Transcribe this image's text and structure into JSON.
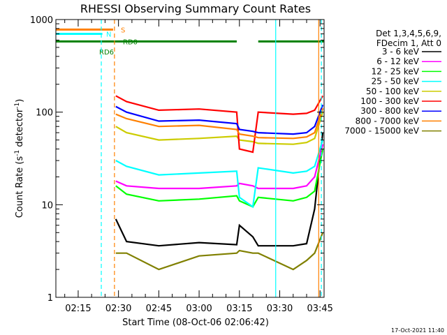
{
  "chart_data": {
    "type": "line",
    "title": "RHESSI Observing Summary Count Rates",
    "xlabel": "Start Time (08-Oct-06 02:06:42)",
    "ylabel_parts": [
      "Count Rate (s",
      "-1",
      " detector",
      "-1",
      ")"
    ],
    "yscale": "log",
    "ylim": [
      1,
      1000
    ],
    "xlim": [
      6.7,
      106.5
    ],
    "x_unit": "minutes since 02:00",
    "y_ticks": [
      {
        "v": 1,
        "label": "1"
      },
      {
        "v": 10,
        "label": "10"
      },
      {
        "v": 100,
        "label": "100"
      },
      {
        "v": 1000,
        "label": "1000"
      }
    ],
    "x_ticks": [
      {
        "v": 15,
        "label": "02:15"
      },
      {
        "v": 30,
        "label": "02:30"
      },
      {
        "v": 45,
        "label": "02:45"
      },
      {
        "v": 60,
        "label": "03:00"
      },
      {
        "v": 75,
        "label": "03:15"
      },
      {
        "v": 90,
        "label": "03:30"
      },
      {
        "v": 105,
        "label": "03:45"
      }
    ],
    "legend": {
      "placement": "right",
      "header": [
        "Det 1,3,4,5,6,9,",
        "FDecim 1, Att 0"
      ]
    },
    "series": [
      {
        "name": "3 - 6 keV",
        "color": "#000000",
        "values": [
          [
            29,
            7
          ],
          [
            33,
            4
          ],
          [
            45,
            3.6
          ],
          [
            60,
            3.9
          ],
          [
            74,
            3.7
          ],
          [
            75,
            6
          ],
          [
            80,
            4.5
          ],
          [
            82,
            3.6
          ],
          [
            95,
            3.6
          ],
          [
            100,
            3.8
          ],
          [
            103,
            9
          ],
          [
            106,
            60
          ]
        ]
      },
      {
        "name": "6 - 12 keV",
        "color": "#ff00ff",
        "values": [
          [
            29,
            18
          ],
          [
            33,
            16
          ],
          [
            45,
            15
          ],
          [
            60,
            15
          ],
          [
            74,
            16
          ],
          [
            75,
            17
          ],
          [
            80,
            16
          ],
          [
            82,
            15
          ],
          [
            95,
            15
          ],
          [
            100,
            16
          ],
          [
            103,
            20
          ],
          [
            106,
            45
          ]
        ]
      },
      {
        "name": "12 - 25 keV",
        "color": "#00ff00",
        "values": [
          [
            29,
            16
          ],
          [
            33,
            13
          ],
          [
            45,
            11
          ],
          [
            60,
            11.5
          ],
          [
            74,
            12.5
          ],
          [
            75,
            11
          ],
          [
            80,
            9.5
          ],
          [
            82,
            12
          ],
          [
            95,
            11
          ],
          [
            100,
            12
          ],
          [
            103,
            14
          ],
          [
            106,
            40
          ]
        ]
      },
      {
        "name": "25 - 50 keV",
        "color": "#00ffff",
        "values": [
          [
            29,
            30
          ],
          [
            33,
            26
          ],
          [
            45,
            21
          ],
          [
            60,
            22
          ],
          [
            74,
            23
          ],
          [
            75,
            12
          ],
          [
            80,
            9.5
          ],
          [
            82,
            25
          ],
          [
            95,
            22
          ],
          [
            100,
            23
          ],
          [
            103,
            26
          ],
          [
            106,
            50
          ]
        ]
      },
      {
        "name": "50 - 100 keV",
        "color": "#cccc00",
        "values": [
          [
            29,
            70
          ],
          [
            33,
            60
          ],
          [
            45,
            50
          ],
          [
            60,
            52
          ],
          [
            74,
            55
          ],
          [
            75,
            50
          ],
          [
            80,
            48
          ],
          [
            82,
            46
          ],
          [
            95,
            45
          ],
          [
            100,
            47
          ],
          [
            103,
            52
          ],
          [
            106,
            100
          ]
        ]
      },
      {
        "name": "100 - 300 keV",
        "color": "#ff0000",
        "values": [
          [
            29,
            150
          ],
          [
            33,
            130
          ],
          [
            45,
            105
          ],
          [
            60,
            108
          ],
          [
            74,
            100
          ],
          [
            75,
            40
          ],
          [
            80,
            37
          ],
          [
            82,
            100
          ],
          [
            95,
            95
          ],
          [
            100,
            97
          ],
          [
            103,
            105
          ],
          [
            106,
            150
          ]
        ]
      },
      {
        "name": "300 - 800 keV",
        "color": "#0000ff",
        "values": [
          [
            29,
            115
          ],
          [
            33,
            100
          ],
          [
            45,
            80
          ],
          [
            60,
            82
          ],
          [
            74,
            75
          ],
          [
            75,
            65
          ],
          [
            80,
            62
          ],
          [
            82,
            60
          ],
          [
            95,
            58
          ],
          [
            100,
            60
          ],
          [
            103,
            70
          ],
          [
            106,
            120
          ]
        ]
      },
      {
        "name": "800 - 7000 keV",
        "color": "#ff8000",
        "values": [
          [
            29,
            95
          ],
          [
            33,
            85
          ],
          [
            45,
            70
          ],
          [
            60,
            72
          ],
          [
            74,
            65
          ],
          [
            75,
            58
          ],
          [
            80,
            55
          ],
          [
            82,
            53
          ],
          [
            95,
            52
          ],
          [
            100,
            54
          ],
          [
            103,
            60
          ],
          [
            106,
            110
          ]
        ]
      },
      {
        "name": "7000 - 15000 keV",
        "color": "#808000",
        "values": [
          [
            29,
            3
          ],
          [
            33,
            3
          ],
          [
            45,
            2
          ],
          [
            60,
            2.8
          ],
          [
            74,
            3
          ],
          [
            75,
            3.2
          ],
          [
            80,
            3
          ],
          [
            82,
            3
          ],
          [
            95,
            2
          ],
          [
            100,
            2.5
          ],
          [
            103,
            3
          ],
          [
            106,
            5
          ]
        ]
      }
    ],
    "flags": [
      {
        "label": "S",
        "color": "#ff8000",
        "y": 780,
        "spans": [
          [
            6.7,
            28
          ]
        ]
      },
      {
        "label": "N",
        "color": "#00ffff",
        "y": 700,
        "spans": [
          [
            6.7,
            24
          ]
        ]
      },
      {
        "label": "RD0",
        "color": "#008000",
        "y": 580,
        "spans": [
          [
            6.7,
            74
          ],
          [
            82,
            106.5
          ]
        ]
      },
      {
        "label": "RD6",
        "color": "#008000",
        "y": 500,
        "spans": []
      }
    ],
    "vlines": [
      {
        "x": 23.6,
        "color": "#00ffff",
        "style": "dashed"
      },
      {
        "x": 28.5,
        "color": "#ff8000",
        "style": "dashed"
      },
      {
        "x": 88.5,
        "color": "#00ffff",
        "style": "solid"
      },
      {
        "x": 104.5,
        "color": "#ff8000",
        "style": "solid"
      },
      {
        "x": 105.5,
        "color": "#00ffff",
        "style": "dashed"
      }
    ],
    "footer_text": "17-Oct-2021 11:40"
  }
}
